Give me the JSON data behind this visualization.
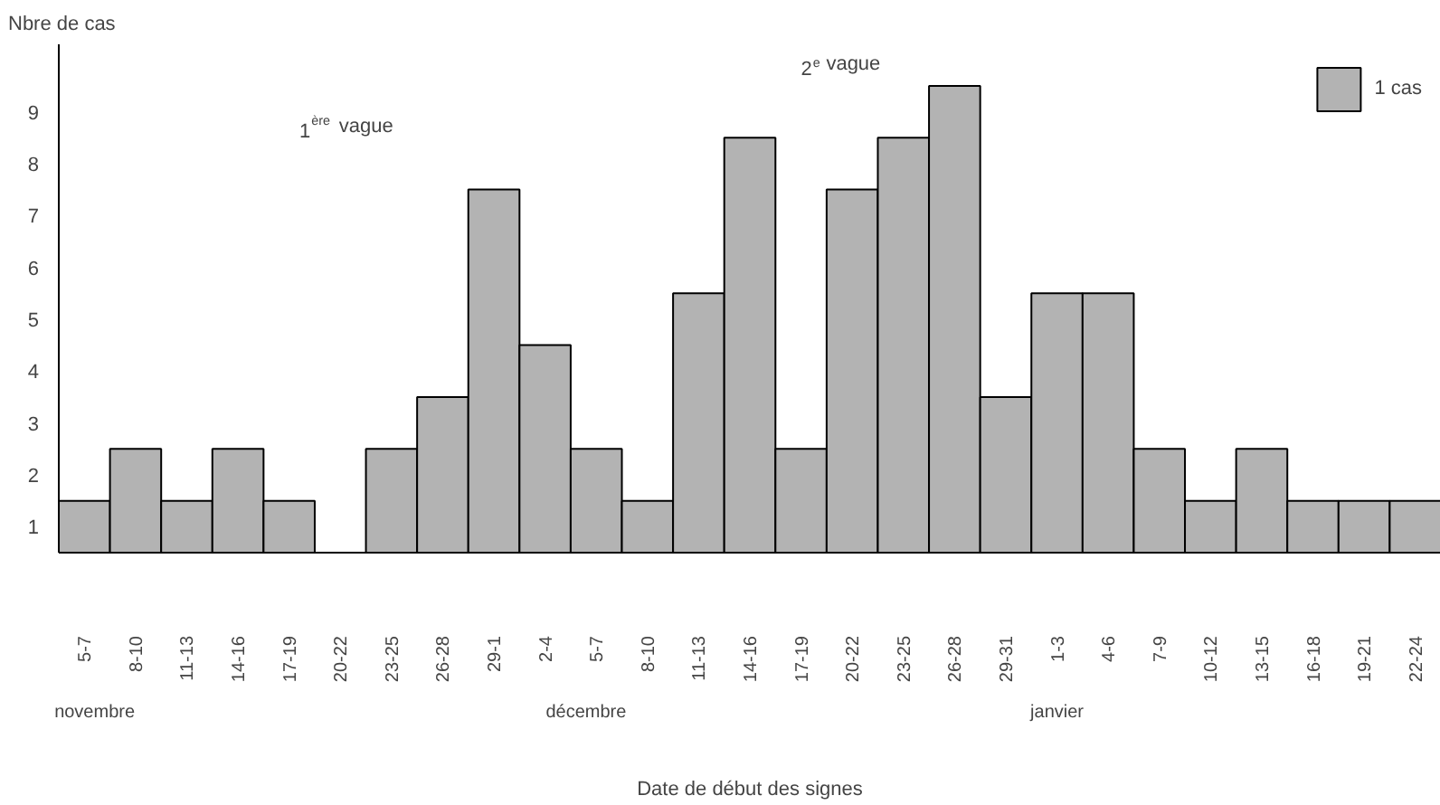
{
  "chart_data": {
    "type": "bar",
    "xlabel": "Date de début des signes",
    "ylabel": "Nbre de cas",
    "categories": [
      "5-7",
      "8-10",
      "11-13",
      "14-16",
      "17-19",
      "20-22",
      "23-25",
      "26-28",
      "29-1",
      "2-4",
      "5-7",
      "8-10",
      "11-13",
      "14-16",
      "17-19",
      "20-22",
      "23-25",
      "26-28",
      "29-31",
      "1-3",
      "4-6",
      "7-9",
      "10-12",
      "13-15",
      "16-18",
      "19-21",
      "22-24"
    ],
    "series": [
      {
        "name": "1 cas",
        "color": "#b3b3b3",
        "values": [
          1,
          2,
          1,
          2,
          1,
          0,
          2,
          3,
          7,
          4,
          2,
          1,
          5,
          8,
          2,
          7,
          8,
          9,
          3,
          5,
          5,
          2,
          1,
          2,
          1,
          1,
          1
        ]
      }
    ],
    "ylim": [
      0,
      9.8
    ],
    "yticks": [
      {
        "value": 0.5,
        "label": "1"
      },
      {
        "value": 1.5,
        "label": "2"
      },
      {
        "value": 2.5,
        "label": "3"
      },
      {
        "value": 3.5,
        "label": "4"
      },
      {
        "value": 4.5,
        "label": "5"
      },
      {
        "value": 5.5,
        "label": "6"
      },
      {
        "value": 6.5,
        "label": "7"
      },
      {
        "value": 7.5,
        "label": "8"
      },
      {
        "value": 8.5,
        "label": "9"
      }
    ],
    "annotations": [
      "1$^{ère}$ vague",
      "2$^{e}$ vague",
      "novembre",
      "décembre",
      "janvier"
    ],
    "legend": "top right",
    "grid": false
  }
}
